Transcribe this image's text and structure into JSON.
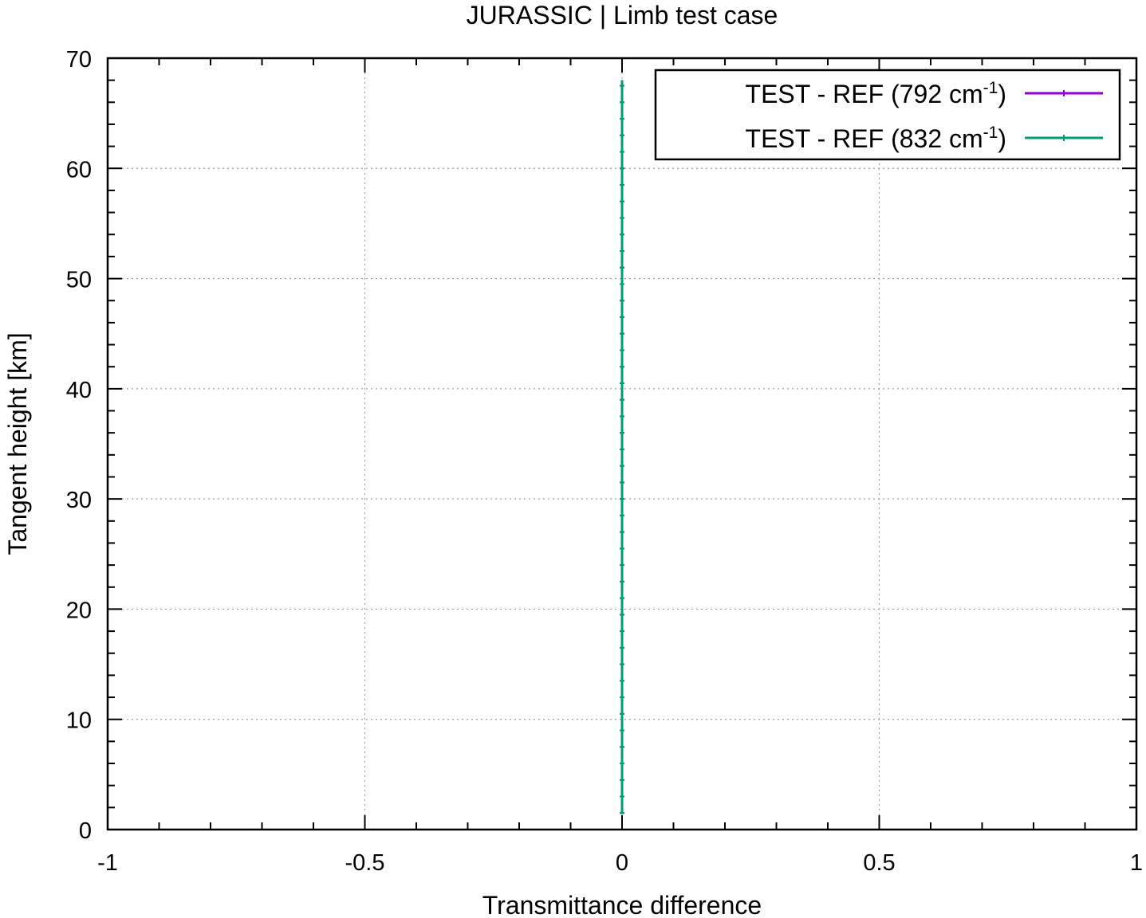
{
  "chart_data": {
    "type": "line",
    "title": "JURASSIC | Limb test case",
    "xlabel": "Transmittance difference",
    "ylabel": "Tangent height [km]",
    "xlim": [
      -1,
      1
    ],
    "ylim": [
      0,
      70
    ],
    "x_ticks": [
      -1,
      -0.5,
      0,
      0.5,
      1
    ],
    "x_tick_labels": [
      "-1",
      "-0.5",
      "0",
      "0.5",
      "1"
    ],
    "x_minor_step": 0.1,
    "y_ticks": [
      0,
      10,
      20,
      30,
      40,
      50,
      60,
      70
    ],
    "y_tick_labels": [
      "0",
      "10",
      "20",
      "30",
      "40",
      "50",
      "60",
      "70"
    ],
    "y_minor_step": 2,
    "grid": true,
    "legend_position": "top-right",
    "series": [
      {
        "name": "TEST - REF (792 cm-1)",
        "label_main": "TEST - REF (792 cm",
        "label_sup": "-1",
        "label_end": ")",
        "color": "#9400d3",
        "x_constant": 0,
        "y_start": 1.5,
        "y_end": 68,
        "y_step": 1.5
      },
      {
        "name": "TEST - REF (832 cm-1)",
        "label_main": "TEST - REF (832 cm",
        "label_sup": "-1",
        "label_end": ")",
        "color": "#009e73",
        "x_constant": 0,
        "y_start": 1.5,
        "y_end": 68,
        "y_step": 1.5
      }
    ]
  }
}
